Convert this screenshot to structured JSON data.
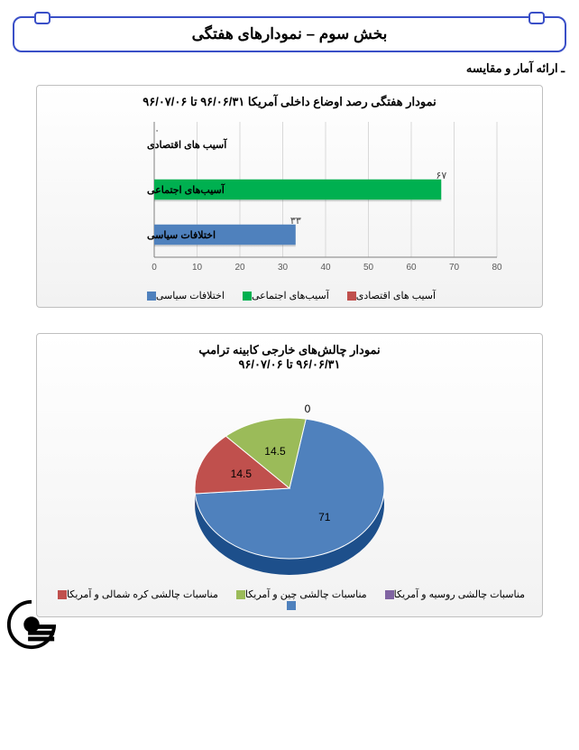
{
  "header": {
    "title": "بخش سوم – نمودارهای هفتگی"
  },
  "subhead": "ـ ارائه آمار و مقایسه",
  "barChart": {
    "type": "bar-horizontal",
    "title": "نمودار هفتگی رصد اوضاع داخلی آمریکا   ۹۶/۰۶/۳۱   تا    ۹۶/۰۷/۰۶",
    "categories": [
      "آسیب های اقتصادی",
      "آسیب‌های اجتماعی",
      "اختلافات سیاسی"
    ],
    "values": [
      "۰",
      "۶۷",
      "۳۳"
    ],
    "values_num": [
      0,
      67,
      33
    ],
    "bar_colors": [
      "#c0504d",
      "#00b050",
      "#4f81bd"
    ],
    "xlim": [
      0,
      80
    ],
    "xtick_step": 10,
    "xticks": [
      "0",
      "10",
      "20",
      "30",
      "40",
      "50",
      "60",
      "70",
      "80"
    ],
    "grid_color": "#d9d9d9",
    "axis_color": "#808080",
    "background": "#ffffff",
    "legend": [
      {
        "label": "آسیب های اقتصادی",
        "color": "#c0504d"
      },
      {
        "label": "آسیب‌های اجتماعی",
        "color": "#00b050"
      },
      {
        "label": "اختلافات سیاسی",
        "color": "#4f81bd"
      }
    ],
    "title_fontsize": 13,
    "label_fontsize": 11,
    "bar_height_ratio": 0.45
  },
  "pieChart": {
    "type": "pie-3d",
    "title_line1": "نمودار چالش‌های خارجی کابینه ترامپ",
    "title_line2": "۹۶/۰۶/۳۱   تا   ۹۶/۰۷/۰۶",
    "slices": [
      {
        "label": "مناسبات چالشی کره شمالی و آمریکا",
        "value": 71,
        "value_text": "71",
        "color": "#4f81bd"
      },
      {
        "label": "مناسبات چالشی چین و آمریکا",
        "value": 14.5,
        "value_text": "14.5",
        "color": "#c0504d"
      },
      {
        "label": "مناسبات چالشی روسیه و آمریکا",
        "value": 14.5,
        "value_text": "14.5",
        "color": "#9bbb59"
      },
      {
        "label": "",
        "value": 0,
        "value_text": "0",
        "color": "#8064a2"
      }
    ],
    "legend": [
      {
        "label": "مناسبات چالشی روسیه و آمریکا",
        "color": "#8064a2"
      },
      {
        "label": "مناسبات چالشی چین و آمریکا",
        "color": "#9bbb59"
      },
      {
        "label": "مناسبات چالشی کره شمالی و آمریکا",
        "color": "#c0504d"
      },
      {
        "label": "",
        "color": "#4f81bd"
      }
    ],
    "legend_display": [
      {
        "label": "مناسبات چالشی روسیه و آمریکا",
        "color": "#8064a2"
      },
      {
        "label": "مناسبات چالشی چین و آمریکا",
        "color": "#9bbb59"
      },
      {
        "label": "مناسبات چالشی کره شمالی و آمریکا",
        "color": "#c0504d"
      },
      {
        "label": "",
        "color": "#4f81bd"
      }
    ],
    "outline_color": "#ffffff",
    "title_fontsize": 13
  }
}
